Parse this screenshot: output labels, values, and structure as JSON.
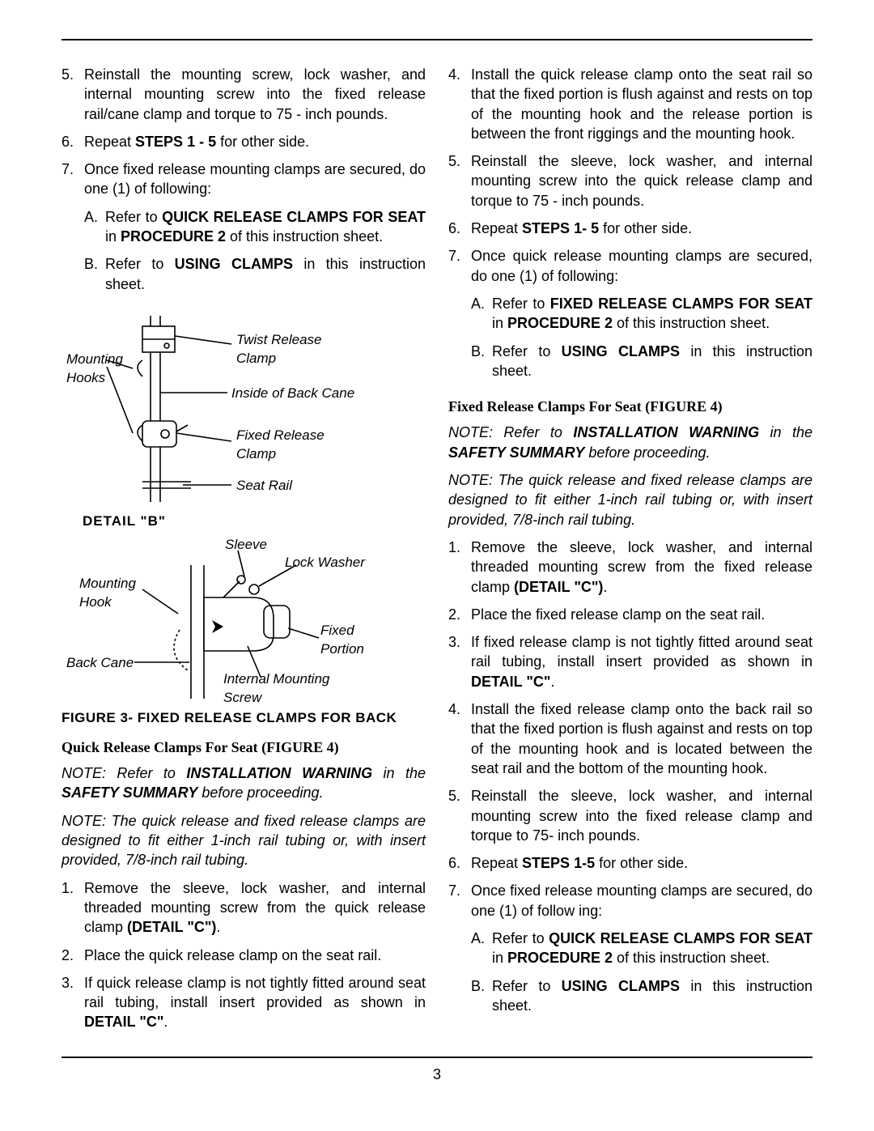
{
  "page_number": "3",
  "left": {
    "steps": [
      {
        "n": "5.",
        "html": "Reinstall the mounting screw, lock washer, and internal mounting screw into the fixed release rail/cane clamp and torque to 75 - inch pounds."
      },
      {
        "n": "6.",
        "html": "Repeat <span class='b'>STEPS 1 - 5</span> for other side."
      },
      {
        "n": "7.",
        "html": "Once fixed release mounting clamps are secured, do one (1) of following:",
        "sub": [
          {
            "n": "A.",
            "html": "Refer to <span class='b'>QUICK RELEASE CLAMPS FOR SEAT</span> in <span class='b'>PROCEDURE 2</span> of this instruction sheet."
          },
          {
            "n": "B.",
            "html": "Refer to <span class='b'>USING CLAMPS</span> in this instruction sheet."
          }
        ]
      }
    ],
    "fig_top": {
      "labels": {
        "mounting_hooks": "Mounting\nHooks",
        "twist": "Twist Release\nClamp",
        "inside": "Inside of Back Cane",
        "fixed": "Fixed Release\nClamp",
        "seat_rail": "Seat Rail"
      }
    },
    "detail_b": "DETAIL   \"B\"",
    "fig_bot": {
      "labels": {
        "sleeve": "Sleeve",
        "lock_washer": "Lock Washer",
        "mounting_hook": "Mounting\nHook",
        "fixed_portion": "Fixed\nPortion",
        "back_cane": "Back Cane",
        "internal": "Internal Mounting\nScrew"
      }
    },
    "fig_caption": "FIGURE 3- FIXED RELEASE CLAMPS FOR BACK",
    "heading": "Quick Release Clamps For Seat (FIGURE 4)",
    "note1": "NOTE: Refer to <span class='b i'>INSTALLATION WARNING</span> in the <span class='b i'>SAFETY SUMMARY</span> before proceeding.",
    "note2": "NOTE: The quick release and fixed release clamps are designed to fit either 1-inch rail tubing or, with insert provided, 7/8-inch rail tubing.",
    "steps2": [
      {
        "n": "1.",
        "html": "Remove the sleeve, lock washer, and internal threaded mounting screw from the quick release clamp <span class='b'>(DETAIL \"C\")</span>."
      },
      {
        "n": "2.",
        "html": "Place the quick release clamp on the seat rail."
      },
      {
        "n": "3.",
        "html": "If quick release clamp is not tightly fitted around seat rail tubing, install insert provided as shown in <span class='b'>DETAIL \"C\"</span>."
      }
    ]
  },
  "right": {
    "steps": [
      {
        "n": "4.",
        "html": "Install the quick release clamp onto the seat rail so that the fixed portion is flush against and rests on top of the mounting hook and the release portion is between the front riggings and the mounting hook."
      },
      {
        "n": "5.",
        "html": "Reinstall the sleeve, lock washer, and internal mounting screw into the quick release  clamp and torque to 75 - inch pounds."
      },
      {
        "n": "6.",
        "html": "Repeat <span class='b'>STEPS 1- 5</span> for other side."
      },
      {
        "n": "7.",
        "html": "Once quick release mounting clamps are secured, do one (1) of following:",
        "sub": [
          {
            "n": "A.",
            "html": "Refer to <span class='b'>FIXED RELEASE CLAMPS FOR SEAT</span> in <span class='b'>PROCEDURE 2</span> of this instruction sheet."
          },
          {
            "n": "B.",
            "html": "Refer to <span class='b'>USING CLAMPS</span> in this instruction  sheet."
          }
        ]
      }
    ],
    "heading": "Fixed Release Clamps For Seat (FIGURE 4)",
    "note1": "NOTE: Refer to <span class='b i'>INSTALLATION WARNING</span> in the <span class='b i'>SAFETY SUMMARY</span> before proceeding.",
    "note2": "NOTE: The quick release and fixed release clamps are designed to fit either 1-inch rail tubing or, with insert provided, 7/8-inch rail tubing.",
    "steps2": [
      {
        "n": "1.",
        "html": "Remove the sleeve, lock washer, and  internal threaded mounting screw from the fixed release  clamp <span class='b'>(DETAIL \"C\")</span>."
      },
      {
        "n": "2.",
        "html": "Place the fixed release clamp on the seat rail."
      },
      {
        "n": "3.",
        "html": "If fixed release clamp is not tightly fitted around seat rail tubing, install insert provided as shown in <span class='b'>DETAIL \"C\"</span>."
      },
      {
        "n": "4.",
        "html": "Install the fixed release clamp onto the back rail so that the fixed portion is flush against and rests on top of the mounting hook and is located between the seat rail and the bottom of the mounting hook."
      },
      {
        "n": "5.",
        "html": "Reinstall the sleeve, lock washer, and internal mounting screw into the fixed release clamp and torque to 75- inch pounds."
      },
      {
        "n": "6.",
        "html": "Repeat <span class='b'>STEPS 1-5</span> for other side."
      },
      {
        "n": "7.",
        "html": "Once fixed release mounting clamps are secured, do one (1) of follow ing:",
        "sub": [
          {
            "n": "A.",
            "html": "Refer to <span class='b'>QUICK RELEASE CLAMPS FOR SEAT</span> in <span class='b'>PROCEDURE 2</span> of this instruction sheet."
          },
          {
            "n": "B.",
            "html": "Refer to <span class='b'>USING CLAMPS</span> in this instruction sheet."
          }
        ]
      }
    ]
  }
}
